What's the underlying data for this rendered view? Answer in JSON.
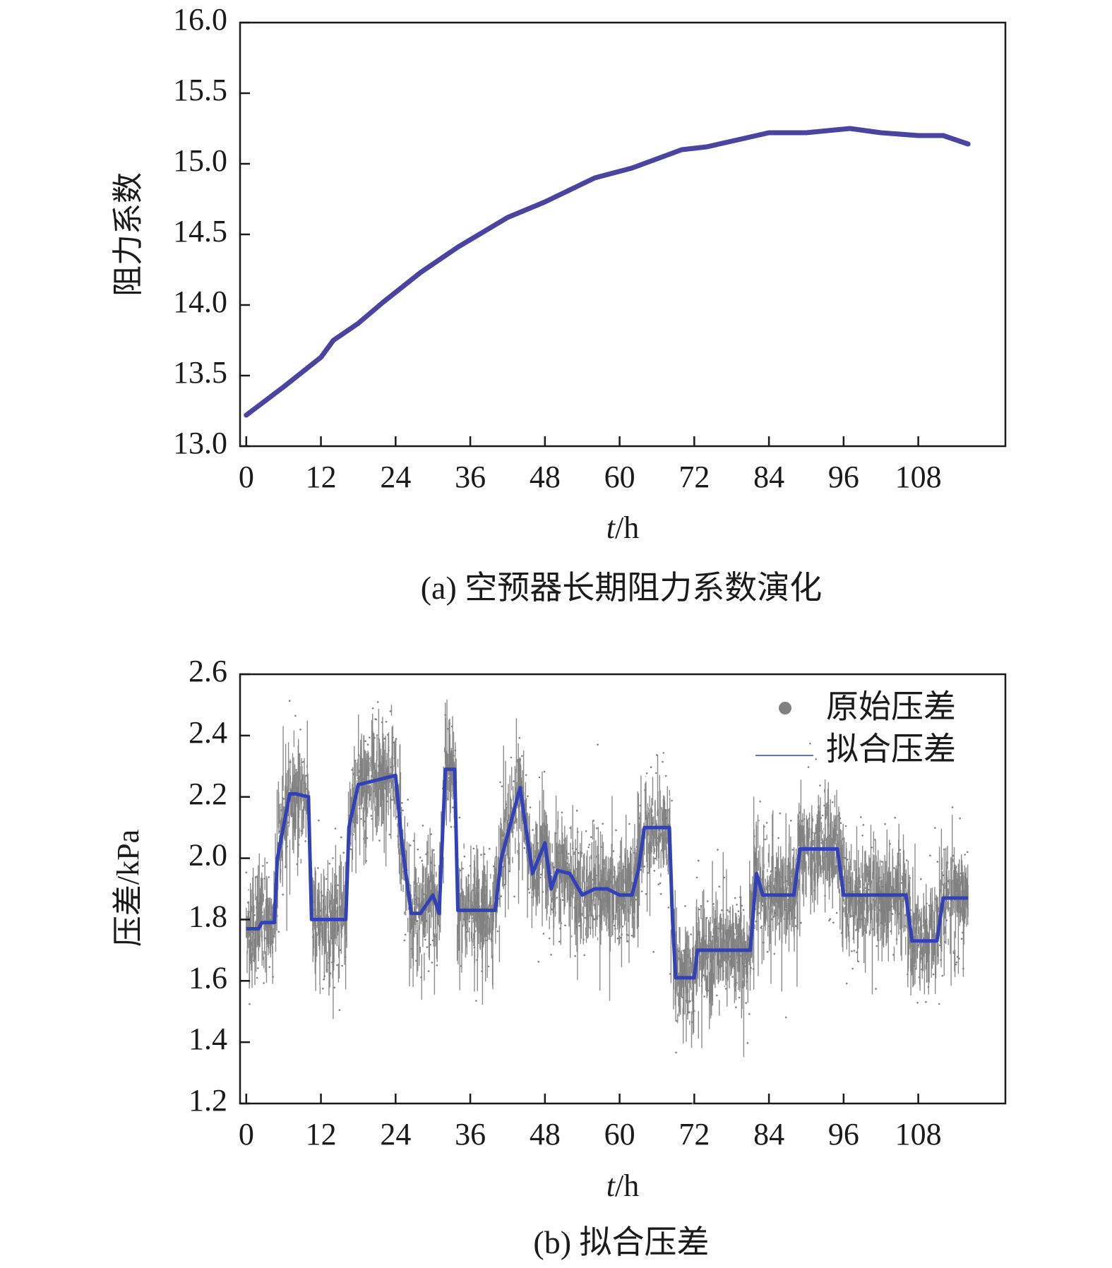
{
  "chart_data": [
    {
      "type": "line",
      "caption": "(a) 空预器长期阻力系数演化",
      "xlabel_italic": "t",
      "xlabel_unit": "/h",
      "ylabel": "阻力系数",
      "xlim": [
        -1,
        122
      ],
      "ylim": [
        13.0,
        16.0
      ],
      "xticks": [
        0,
        12,
        24,
        36,
        48,
        60,
        72,
        84,
        96,
        108
      ],
      "yticks": [
        "13.0",
        "13.5",
        "14.0",
        "14.5",
        "15.0",
        "15.5",
        "16.0"
      ],
      "grid": false,
      "line_color": "#4a44a0",
      "series": [
        {
          "x": [
            0,
            6,
            12,
            14,
            18,
            22,
            28,
            34,
            42,
            48,
            56,
            62,
            70,
            74,
            80,
            84,
            90,
            97,
            102,
            108,
            112,
            116
          ],
          "y": [
            13.22,
            13.42,
            13.63,
            13.75,
            13.87,
            14.02,
            14.23,
            14.41,
            14.62,
            14.73,
            14.9,
            14.97,
            15.1,
            15.12,
            15.18,
            15.22,
            15.22,
            15.25,
            15.22,
            15.2,
            15.2,
            15.14
          ]
        }
      ]
    },
    {
      "type": "scatter",
      "caption": "(b) 拟合压差",
      "xlabel_italic": "t",
      "xlabel_unit": "/h",
      "ylabel": "压差/kPa",
      "xlim": [
        -1,
        122
      ],
      "ylim": [
        1.2,
        2.6
      ],
      "xticks": [
        0,
        12,
        24,
        36,
        48,
        60,
        72,
        84,
        96,
        108
      ],
      "yticks": [
        "1.2",
        "1.4",
        "1.6",
        "1.8",
        "2.0",
        "2.2",
        "2.4",
        "2.6"
      ],
      "grid": false,
      "legend_position": "top-right",
      "raw_color": "#808080",
      "fit_color": "#3341b8",
      "series": [
        {
          "name": "原始压差",
          "kind": "scatter",
          "noise_band_kpa": 0.06
        },
        {
          "name": "拟合压差",
          "kind": "line",
          "x": [
            0,
            2,
            2.5,
            4.5,
            5,
            7,
            8,
            10,
            10.5,
            12,
            16,
            16.5,
            18,
            20,
            24,
            25,
            26.5,
            28,
            30,
            31,
            32,
            33.5,
            34,
            36,
            40,
            41,
            44,
            46,
            47,
            48,
            49,
            50,
            52,
            54,
            56,
            58,
            60,
            62,
            63,
            64,
            68,
            68.5,
            69,
            72,
            72.5,
            81,
            82,
            83,
            84,
            88,
            89,
            95,
            96,
            102,
            106,
            107,
            111,
            112,
            116
          ],
          "y": [
            1.77,
            1.77,
            1.79,
            1.79,
            2.0,
            2.21,
            2.21,
            2.2,
            1.8,
            1.8,
            1.8,
            2.1,
            2.24,
            2.25,
            2.27,
            2.05,
            1.82,
            1.82,
            1.88,
            1.82,
            2.29,
            2.29,
            1.83,
            1.83,
            1.83,
            2.0,
            2.23,
            1.95,
            2.0,
            2.05,
            1.9,
            1.96,
            1.95,
            1.88,
            1.9,
            1.9,
            1.88,
            1.88,
            1.96,
            2.1,
            2.1,
            1.8,
            1.61,
            1.61,
            1.7,
            1.7,
            1.95,
            1.88,
            1.88,
            1.88,
            2.03,
            2.03,
            1.88,
            1.88,
            1.88,
            1.73,
            1.73,
            1.87,
            1.87
          ]
        }
      ]
    }
  ]
}
